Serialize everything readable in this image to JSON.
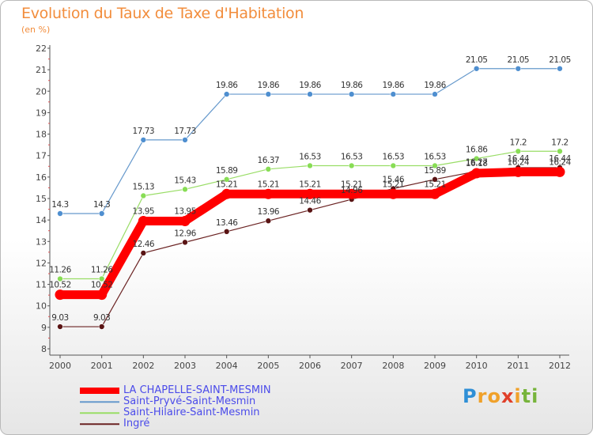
{
  "chart_data": {
    "type": "line",
    "title": "Evolution du Taux de Taxe d'Habitation",
    "subtitle": "(en %)",
    "xlabel": "",
    "ylabel": "",
    "x": [
      "2000",
      "2001",
      "2002",
      "2003",
      "2004",
      "2005",
      "2006",
      "2007",
      "2008",
      "2009",
      "2010",
      "2011",
      "2012"
    ],
    "ylim": [
      8,
      22
    ],
    "yticks": [
      "8",
      "9",
      "10",
      "11",
      "12",
      "13",
      "14",
      "15",
      "16",
      "17",
      "18",
      "19",
      "20",
      "21",
      "22"
    ],
    "grid": false,
    "legend_position": "bottom-left",
    "series": [
      {
        "name": "LA CHAPELLE-SAINT-MESMIN",
        "color": "#ff0000",
        "values": [
          10.52,
          10.52,
          13.95,
          13.95,
          15.21,
          15.21,
          15.21,
          15.21,
          15.21,
          15.21,
          16.18,
          16.24,
          16.24
        ]
      },
      {
        "name": "Saint-Pryvé-Saint-Mesmin",
        "color": "#6699cc",
        "values": [
          14.3,
          14.3,
          17.73,
          17.73,
          19.86,
          19.86,
          19.86,
          19.86,
          19.86,
          19.86,
          21.05,
          21.05,
          21.05
        ]
      },
      {
        "name": "Saint-Hilaire-Saint-Mesmin",
        "color": "#99dd66",
        "values": [
          11.26,
          11.26,
          15.13,
          15.43,
          15.89,
          16.37,
          16.53,
          16.53,
          16.53,
          16.53,
          16.86,
          17.2,
          17.2
        ]
      },
      {
        "name": "Ingré",
        "color": "#6b2323",
        "values": [
          9.03,
          9.03,
          12.46,
          12.96,
          13.46,
          13.96,
          14.46,
          14.96,
          15.46,
          15.89,
          16.27,
          16.44,
          16.44
        ]
      }
    ],
    "data_labels": [
      [
        "10.52",
        "10.52",
        "13.95",
        "13.95",
        "15.21",
        "15.21",
        "15.21",
        "15.21",
        "15.21",
        "15.21",
        "16.18",
        "16.24",
        "16.24"
      ],
      [
        "14.3",
        "14.3",
        "17.73",
        "17.73",
        "19.86",
        "19.86",
        "19.86",
        "19.86",
        "19.86",
        "19.86",
        "21.05",
        "21.05",
        "21.05"
      ],
      [
        "11.26",
        "11.26",
        "15.13",
        "15.43",
        "15.89",
        "16.37",
        "16.53",
        "16.53",
        "16.53",
        "16.53",
        "16.86",
        "17.2",
        "17.2"
      ],
      [
        "9.03",
        "9.03",
        "12.46",
        "12.96",
        "13.46",
        "13.96",
        "14.46",
        "14.96",
        "15.46",
        "15.89",
        "16.27",
        "16.44",
        "16.44"
      ]
    ]
  },
  "logo": {
    "text": "Proxiti",
    "letters": [
      "P",
      "r",
      "o",
      "x",
      "i",
      "t",
      "i"
    ],
    "colors": [
      "#2f8fd6",
      "#f0a12a",
      "#f0a12a",
      "#e0402a",
      "#f0a12a",
      "#77b43c",
      "#77b43c"
    ]
  }
}
